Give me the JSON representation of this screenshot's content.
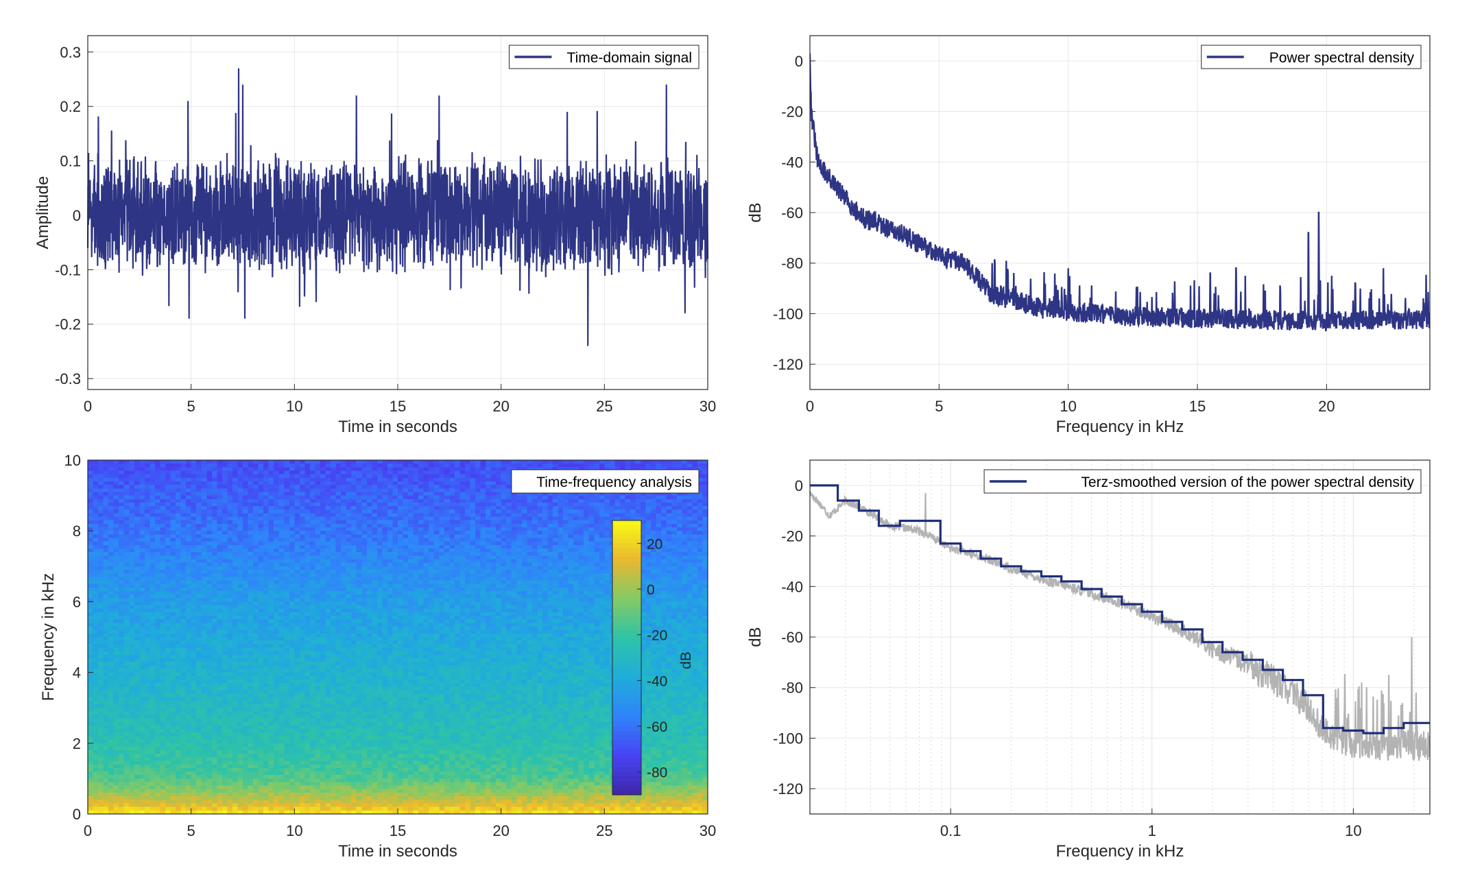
{
  "chart_data": [
    {
      "type": "line",
      "series": [
        {
          "name": "Time-domain signal"
        }
      ],
      "xlabel": "Time in seconds",
      "ylabel": "Amplitude",
      "xlim": [
        0,
        30
      ],
      "ylim": [
        -0.32,
        0.33
      ],
      "xticks": [
        "0",
        "5",
        "10",
        "15",
        "20",
        "25",
        "30"
      ],
      "yticks": [
        "-0.3",
        "-0.2",
        "-0.1",
        "0",
        "0.1",
        "0.2",
        "0.3"
      ],
      "grid": true,
      "legend_position": "top-right",
      "color": "#2e3584",
      "signal": {
        "envelope_typical": 0.1,
        "peaks": [
          {
            "x": 4.85,
            "y": 0.21
          },
          {
            "x": 7.3,
            "y": 0.27
          },
          {
            "x": 7.5,
            "y": 0.24
          },
          {
            "x": 13.0,
            "y": 0.22
          },
          {
            "x": 17.0,
            "y": 0.22
          },
          {
            "x": 23.2,
            "y": 0.19
          },
          {
            "x": 28.0,
            "y": 0.24
          },
          {
            "x": 24.2,
            "y": -0.24
          },
          {
            "x": 4.9,
            "y": -0.19
          },
          {
            "x": 7.6,
            "y": -0.19
          },
          {
            "x": 28.9,
            "y": -0.18
          }
        ]
      }
    },
    {
      "type": "line",
      "series": [
        {
          "name": "Power spectral density"
        }
      ],
      "xlabel": "Frequency in kHz",
      "ylabel": "dB",
      "xlim": [
        0,
        24
      ],
      "ylim": [
        -130,
        10
      ],
      "xticks": [
        "0",
        "5",
        "10",
        "15",
        "20"
      ],
      "yticks": [
        "-120",
        "-100",
        "-80",
        "-60",
        "-40",
        "-20",
        "0"
      ],
      "grid": true,
      "legend_position": "top-right",
      "color": "#2e3584",
      "trend": [
        {
          "x": 0.0,
          "y": 5
        },
        {
          "x": 0.05,
          "y": -20
        },
        {
          "x": 0.3,
          "y": -40
        },
        {
          "x": 1.0,
          "y": -50
        },
        {
          "x": 2.0,
          "y": -62
        },
        {
          "x": 3.5,
          "y": -68
        },
        {
          "x": 5.0,
          "y": -77
        },
        {
          "x": 6.0,
          "y": -80
        },
        {
          "x": 7.0,
          "y": -92
        },
        {
          "x": 9.0,
          "y": -98
        },
        {
          "x": 12.0,
          "y": -101
        },
        {
          "x": 16.0,
          "y": -102
        },
        {
          "x": 20.0,
          "y": -103
        },
        {
          "x": 24.0,
          "y": -102
        }
      ],
      "spikes": [
        {
          "x": 10.0,
          "y": -82
        },
        {
          "x": 15.5,
          "y": -84
        },
        {
          "x": 16.5,
          "y": -82
        },
        {
          "x": 19.3,
          "y": -68
        },
        {
          "x": 19.7,
          "y": -60
        },
        {
          "x": 20.2,
          "y": -85
        },
        {
          "x": 22.2,
          "y": -82
        }
      ]
    },
    {
      "type": "heatmap",
      "title": "Time-frequency analysis",
      "xlabel": "Time in seconds",
      "ylabel": "Frequency in kHz",
      "xlim": [
        0,
        30
      ],
      "ylim": [
        0,
        10
      ],
      "xticks": [
        "0",
        "5",
        "10",
        "15",
        "20",
        "25",
        "30"
      ],
      "yticks": [
        "0",
        "2",
        "4",
        "6",
        "8",
        "10"
      ],
      "colorbar": {
        "label": "dB",
        "range": [
          -90,
          30
        ],
        "ticks": [
          "20",
          "0",
          "-20",
          "-40",
          "-60",
          "-80"
        ],
        "colormap": [
          "#3e26a8",
          "#4743f4",
          "#2f84fa",
          "#1fadda",
          "#2ec3a7",
          "#83ca66",
          "#e9b82f",
          "#f9fb15"
        ]
      },
      "level_by_frequency": [
        {
          "f": 0.0,
          "db": 25
        },
        {
          "f": 0.3,
          "db": 10
        },
        {
          "f": 1.0,
          "db": -15
        },
        {
          "f": 2.0,
          "db": -25
        },
        {
          "f": 4.0,
          "db": -35
        },
        {
          "f": 6.0,
          "db": -45
        },
        {
          "f": 8.0,
          "db": -60
        },
        {
          "f": 10.0,
          "db": -70
        }
      ]
    },
    {
      "type": "line",
      "series": [
        {
          "name": "Terz-smoothed version of the power spectral density",
          "color": "#1f2e7a"
        },
        {
          "color": "#b3b3b3"
        }
      ],
      "xlabel": "Frequency in kHz",
      "ylabel": "dB",
      "xscale": "log",
      "xlim": [
        0.02,
        24
      ],
      "ylim": [
        -130,
        10
      ],
      "xticks": [
        "0.1",
        "1",
        "10"
      ],
      "yticks": [
        "-120",
        "-100",
        "-80",
        "-60",
        "-40",
        "-20",
        "0"
      ],
      "grid": true,
      "legend_position": "top-right",
      "steps": [
        {
          "x": 0.02,
          "y": 0
        },
        {
          "x": 0.0275,
          "y": -6
        },
        {
          "x": 0.035,
          "y": -10
        },
        {
          "x": 0.044,
          "y": -16
        },
        {
          "x": 0.056,
          "y": -14
        },
        {
          "x": 0.089,
          "y": -23
        },
        {
          "x": 0.112,
          "y": -26
        },
        {
          "x": 0.141,
          "y": -29
        },
        {
          "x": 0.178,
          "y": -32
        },
        {
          "x": 0.224,
          "y": -34
        },
        {
          "x": 0.282,
          "y": -36
        },
        {
          "x": 0.355,
          "y": -38
        },
        {
          "x": 0.447,
          "y": -41
        },
        {
          "x": 0.562,
          "y": -44
        },
        {
          "x": 0.708,
          "y": -47
        },
        {
          "x": 0.891,
          "y": -50
        },
        {
          "x": 1.122,
          "y": -54
        },
        {
          "x": 1.413,
          "y": -57
        },
        {
          "x": 1.778,
          "y": -62
        },
        {
          "x": 2.239,
          "y": -66
        },
        {
          "x": 2.818,
          "y": -69
        },
        {
          "x": 3.548,
          "y": -73
        },
        {
          "x": 4.467,
          "y": -77
        },
        {
          "x": 5.623,
          "y": -83
        },
        {
          "x": 7.079,
          "y": -96
        },
        {
          "x": 8.913,
          "y": -97
        },
        {
          "x": 11.22,
          "y": -98
        },
        {
          "x": 14.13,
          "y": -96
        },
        {
          "x": 17.78,
          "y": -94
        },
        {
          "x": 24.0,
          "y": -94
        }
      ],
      "raw_trend": [
        {
          "x": 0.02,
          "y": -3
        },
        {
          "x": 0.025,
          "y": -12
        },
        {
          "x": 0.03,
          "y": -6
        },
        {
          "x": 0.05,
          "y": -16
        },
        {
          "x": 0.07,
          "y": -18
        },
        {
          "x": 0.1,
          "y": -25
        },
        {
          "x": 0.2,
          "y": -33
        },
        {
          "x": 0.3,
          "y": -38
        },
        {
          "x": 0.5,
          "y": -43
        },
        {
          "x": 1.0,
          "y": -52
        },
        {
          "x": 2.0,
          "y": -65
        },
        {
          "x": 4.0,
          "y": -77
        },
        {
          "x": 6.0,
          "y": -88
        },
        {
          "x": 7.0,
          "y": -97
        },
        {
          "x": 10.0,
          "y": -103
        },
        {
          "x": 24.0,
          "y": -103
        }
      ],
      "raw_spikes": [
        {
          "x": 0.075,
          "y": -3
        },
        {
          "x": 11.0,
          "y": -78
        },
        {
          "x": 15.0,
          "y": -75
        },
        {
          "x": 19.5,
          "y": -60
        },
        {
          "x": 20.5,
          "y": -82
        }
      ]
    }
  ]
}
